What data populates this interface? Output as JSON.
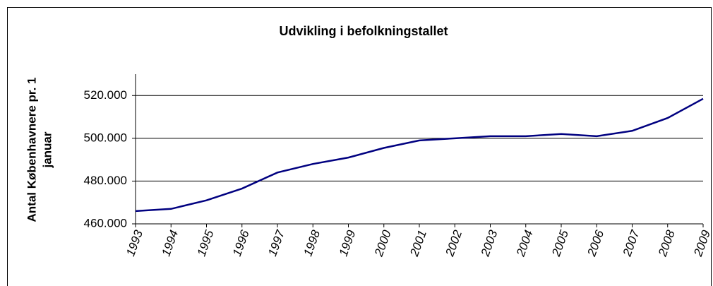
{
  "chart_data": {
    "type": "line",
    "title": "Udvikling i befolkningstallet",
    "y_label_lines": [
      "Antal Københavnere pr. 1",
      "januar"
    ],
    "x": [
      1993,
      1994,
      1995,
      1996,
      1997,
      1998,
      1999,
      2000,
      2001,
      2002,
      2003,
      2004,
      2005,
      2006,
      2007,
      2008,
      2009
    ],
    "series": [
      {
        "color": "#000080",
        "values": [
          466000,
          467000,
          471000,
          476500,
          484000,
          488000,
          491000,
          495500,
          499000,
          500000,
          501000,
          501000,
          502000,
          501000,
          503500,
          509500,
          518500
        ]
      }
    ],
    "xlim": [
      1993,
      2009
    ],
    "xticks": [
      1993,
      1994,
      1995,
      1996,
      1997,
      1998,
      1999,
      2000,
      2001,
      2002,
      2003,
      2004,
      2005,
      2006,
      2007,
      2008,
      2009
    ],
    "ylim": [
      460000,
      530000
    ],
    "yticks": [
      {
        "value": 460000,
        "label": "460.000"
      },
      {
        "value": 480000,
        "label": "480.000"
      },
      {
        "value": 500000,
        "label": "500.000"
      },
      {
        "value": 520000,
        "label": "520.000"
      }
    ],
    "grid": true
  }
}
